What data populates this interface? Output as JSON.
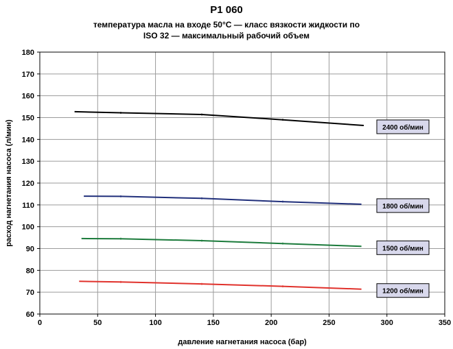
{
  "title": "P1 060",
  "subtitle_line1": "температура масла на входе 50°С — класс вязкости жидкости по",
  "subtitle_line2": "ISO 32 — максимальный рабочий объем",
  "chart_data": {
    "type": "line",
    "title": "P1 060",
    "subtitle": "температура масла на входе 50°С — класс вязкости жидкости по ISO 32 — максимальный рабочий объем",
    "xlabel": "давление нагнетания насоса (бар)",
    "ylabel": "расход нагнетания насоса (л/мин)",
    "xlim": [
      0,
      350
    ],
    "ylim": [
      60,
      180
    ],
    "xticks": [
      "0",
      "50",
      "100",
      "150",
      "200",
      "250",
      "300",
      "350"
    ],
    "yticks": [
      "60",
      "70",
      "80",
      "90",
      "100",
      "110",
      "120",
      "130",
      "140",
      "150",
      "160",
      "170",
      "180"
    ],
    "grid": true,
    "series": [
      {
        "name": "2400 об/мин",
        "color": "#000000",
        "points": [
          [
            30,
            152.7
          ],
          [
            70,
            152.2
          ],
          [
            140,
            151.4
          ],
          [
            210,
            149.0
          ],
          [
            280,
            146.4
          ]
        ]
      },
      {
        "name": "1800 об/мин",
        "color": "#1f2e7a",
        "points": [
          [
            38,
            114.0
          ],
          [
            70,
            113.9
          ],
          [
            140,
            113.0
          ],
          [
            210,
            111.5
          ],
          [
            278,
            110.3
          ]
        ]
      },
      {
        "name": "1500 об/мин",
        "color": "#1a7a3a",
        "points": [
          [
            36,
            94.6
          ],
          [
            70,
            94.5
          ],
          [
            140,
            93.6
          ],
          [
            210,
            92.3
          ],
          [
            278,
            91.0
          ]
        ]
      },
      {
        "name": "1200 об/мин",
        "color": "#e0302a",
        "points": [
          [
            34,
            75.0
          ],
          [
            70,
            74.7
          ],
          [
            140,
            73.8
          ],
          [
            210,
            72.7
          ],
          [
            278,
            71.4
          ]
        ]
      }
    ]
  }
}
